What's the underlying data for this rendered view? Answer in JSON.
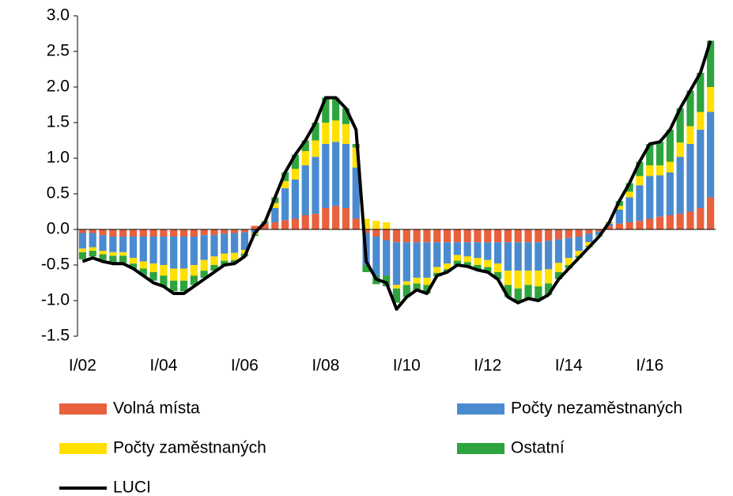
{
  "chart_data": {
    "type": "bar",
    "stacked": true,
    "categories": [
      "I/02",
      null,
      null,
      null,
      null,
      null,
      null,
      null,
      "I/04",
      null,
      null,
      null,
      null,
      null,
      null,
      null,
      "I/06",
      null,
      null,
      null,
      null,
      null,
      null,
      null,
      "I/08",
      null,
      null,
      null,
      null,
      null,
      null,
      null,
      "I/10",
      null,
      null,
      null,
      null,
      null,
      null,
      null,
      "I/12",
      null,
      null,
      null,
      null,
      null,
      null,
      null,
      "I/14",
      null,
      null,
      null,
      null,
      null,
      null,
      null,
      "I/16",
      null,
      null,
      null,
      null,
      null,
      null
    ],
    "series": [
      {
        "name": "Volná místa",
        "color": "#e8603c",
        "values": [
          -0.05,
          -0.05,
          -0.08,
          -0.1,
          -0.1,
          -0.1,
          -0.1,
          -0.1,
          -0.1,
          -0.1,
          -0.1,
          -0.1,
          -0.08,
          -0.08,
          -0.06,
          -0.05,
          -0.04,
          0.05,
          0.08,
          0.1,
          0.13,
          0.15,
          0.2,
          0.22,
          0.3,
          0.33,
          0.3,
          0.15,
          -0.05,
          -0.1,
          -0.15,
          -0.18,
          -0.18,
          -0.18,
          -0.18,
          -0.18,
          -0.18,
          -0.18,
          -0.18,
          -0.18,
          -0.18,
          -0.18,
          -0.18,
          -0.18,
          -0.18,
          -0.18,
          -0.16,
          -0.14,
          -0.12,
          -0.1,
          -0.06,
          -0.03,
          0.05,
          0.08,
          0.1,
          0.12,
          0.15,
          0.18,
          0.2,
          0.22,
          0.25,
          0.3,
          0.45
        ]
      },
      {
        "name": "Počty nezaměstnaných",
        "color": "#4a8bd0",
        "values": [
          -0.22,
          -0.2,
          -0.22,
          -0.22,
          -0.22,
          -0.3,
          -0.35,
          -0.38,
          -0.4,
          -0.45,
          -0.45,
          -0.4,
          -0.35,
          -0.3,
          -0.28,
          -0.28,
          -0.25,
          -0.05,
          0.02,
          0.2,
          0.45,
          0.55,
          0.7,
          0.8,
          0.9,
          0.9,
          0.9,
          0.72,
          -0.45,
          -0.55,
          -0.5,
          -0.6,
          -0.55,
          -0.5,
          -0.5,
          -0.35,
          -0.3,
          -0.18,
          -0.2,
          -0.22,
          -0.25,
          -0.3,
          -0.4,
          -0.4,
          -0.4,
          -0.4,
          -0.4,
          -0.33,
          -0.28,
          -0.2,
          -0.12,
          -0.05,
          0.03,
          0.2,
          0.35,
          0.5,
          0.6,
          0.58,
          0.6,
          0.8,
          0.95,
          1.1,
          1.2
        ]
      },
      {
        "name": "Počty zaměstnaných",
        "color": "#ffe000",
        "values": [
          -0.05,
          -0.05,
          -0.05,
          -0.05,
          -0.05,
          -0.08,
          -0.1,
          -0.12,
          -0.15,
          -0.17,
          -0.17,
          -0.15,
          -0.15,
          -0.12,
          -0.1,
          -0.1,
          -0.05,
          -0.02,
          0.01,
          0.07,
          0.1,
          0.15,
          0.2,
          0.23,
          0.3,
          0.3,
          0.28,
          0.28,
          0.15,
          0.12,
          0.1,
          -0.05,
          -0.05,
          -0.08,
          -0.1,
          -0.08,
          -0.08,
          -0.08,
          -0.08,
          -0.1,
          -0.1,
          -0.12,
          -0.2,
          -0.25,
          -0.2,
          -0.22,
          -0.2,
          -0.13,
          -0.1,
          -0.07,
          -0.05,
          -0.01,
          0.01,
          0.05,
          0.08,
          0.13,
          0.15,
          0.14,
          0.15,
          0.2,
          0.25,
          0.25,
          0.35
        ]
      },
      {
        "name": "Ostatní",
        "color": "#2ea43e",
        "values": [
          -0.1,
          -0.08,
          -0.08,
          -0.1,
          -0.1,
          -0.07,
          -0.1,
          -0.12,
          -0.15,
          -0.15,
          -0.15,
          -0.13,
          -0.1,
          -0.08,
          -0.06,
          -0.05,
          -0.04,
          -0.02,
          0.01,
          0.08,
          0.12,
          0.2,
          0.15,
          0.25,
          0.35,
          0.32,
          0.22,
          0.05,
          -0.1,
          -0.12,
          -0.15,
          -0.2,
          -0.17,
          -0.1,
          -0.12,
          -0.05,
          -0.04,
          -0.06,
          -0.06,
          -0.07,
          -0.07,
          -0.1,
          -0.17,
          -0.2,
          -0.19,
          -0.2,
          -0.16,
          -0.1,
          -0.05,
          -0.03,
          -0.02,
          -0.01,
          0.01,
          0.07,
          0.12,
          0.2,
          0.3,
          0.33,
          0.45,
          0.48,
          0.5,
          0.55,
          0.65
        ]
      },
      {
        "name": "LUCI",
        "color": "#000000",
        "type": "line",
        "values": [
          -0.45,
          -0.4,
          -0.45,
          -0.48,
          -0.48,
          -0.55,
          -0.65,
          -0.75,
          -0.8,
          -0.9,
          -0.9,
          -0.8,
          -0.7,
          -0.6,
          -0.5,
          -0.48,
          -0.38,
          -0.05,
          0.1,
          0.45,
          0.8,
          1.05,
          1.25,
          1.5,
          1.85,
          1.85,
          1.7,
          1.4,
          -0.45,
          -0.7,
          -0.75,
          -1.12,
          -0.95,
          -0.85,
          -0.9,
          -0.65,
          -0.6,
          -0.5,
          -0.52,
          -0.57,
          -0.6,
          -0.7,
          -0.95,
          -1.03,
          -0.97,
          -1.0,
          -0.92,
          -0.7,
          -0.55,
          -0.4,
          -0.25,
          -0.1,
          0.1,
          0.4,
          0.65,
          0.95,
          1.2,
          1.23,
          1.4,
          1.7,
          1.95,
          2.2,
          2.65
        ]
      }
    ],
    "ylim": [
      -1.5,
      3
    ],
    "yticks": [
      {
        "value": 3,
        "label": "3.0"
      },
      2.5,
      {
        "value": 2,
        "label": "2.0"
      },
      1.5,
      {
        "value": 1,
        "label": "1.0"
      },
      0.5,
      {
        "value": 0,
        "label": "0.0"
      },
      -0.5,
      {
        "value": -1,
        "label": "-1.0"
      },
      -1.5
    ],
    "grid": false,
    "legend": "bottom"
  }
}
